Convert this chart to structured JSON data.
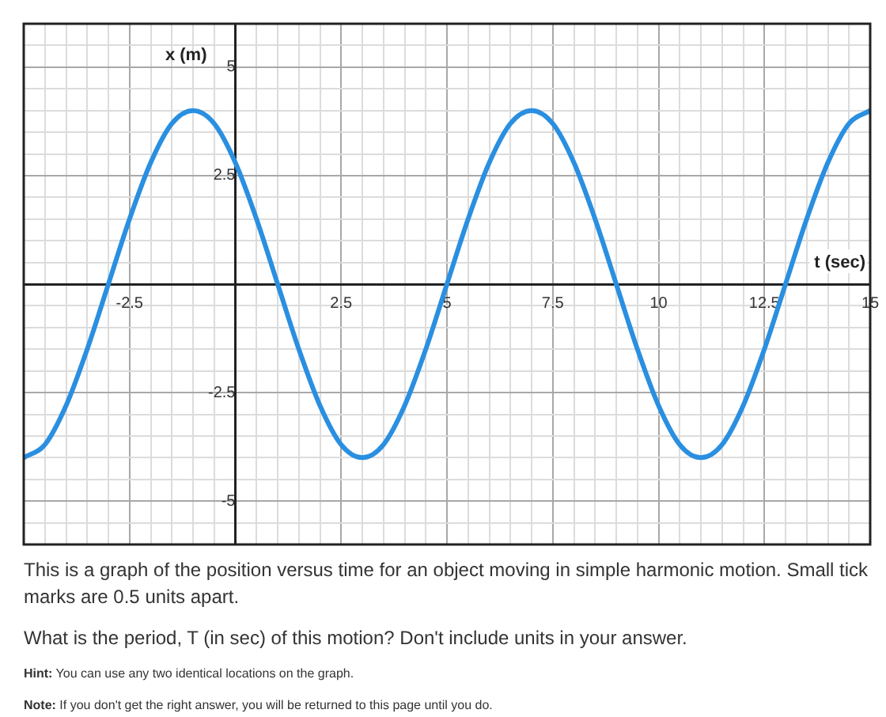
{
  "chart_data": {
    "type": "line",
    "xlabel": "t (sec)",
    "ylabel": "x (m)",
    "series": [
      {
        "color": "#2a8fe0",
        "x": [
          -5,
          -4.5,
          -4,
          -3.5,
          -3,
          -2.5,
          -2,
          -1.5,
          -1,
          -0.5,
          0,
          0.5,
          1,
          1.5,
          2,
          2.5,
          3,
          3.5,
          4,
          4.5,
          5,
          5.5,
          6,
          6.5,
          7,
          7.5,
          8,
          8.5,
          9,
          9.5,
          10,
          10.5,
          11,
          11.5,
          12,
          12.5,
          13,
          13.5,
          14,
          14.5,
          15
        ],
        "values": [
          -4,
          -3.7,
          -2.8,
          -1.5,
          0,
          1.5,
          2.8,
          3.7,
          4,
          3.7,
          2.8,
          1.5,
          0,
          -1.5,
          -2.8,
          -3.7,
          -4,
          -3.7,
          -2.8,
          -1.5,
          0,
          1.5,
          2.8,
          3.7,
          4,
          3.7,
          2.8,
          1.5,
          0,
          -1.5,
          -2.8,
          -3.7,
          -4,
          -3.7,
          -2.8,
          -1.5,
          0,
          1.5,
          2.8,
          3.7,
          4
        ]
      }
    ],
    "xlim": [
      -5,
      15
    ],
    "ylim": [
      -6,
      6
    ],
    "xticks": [
      {
        "value": -5,
        "label": null
      },
      {
        "value": -4.5,
        "label": null
      },
      {
        "value": -4,
        "label": null
      },
      {
        "value": -3.5,
        "label": null
      },
      {
        "value": -3,
        "label": null
      },
      -2.5,
      {
        "value": -2,
        "label": null
      },
      {
        "value": -1.5,
        "label": null
      },
      {
        "value": -1,
        "label": null
      },
      {
        "value": -0.5,
        "label": null
      },
      {
        "value": 0,
        "label": null
      },
      {
        "value": 0.5,
        "label": null
      },
      {
        "value": 1,
        "label": null
      },
      {
        "value": 1.5,
        "label": null
      },
      {
        "value": 2,
        "label": null
      },
      2.5,
      {
        "value": 3,
        "label": null
      },
      {
        "value": 3.5,
        "label": null
      },
      {
        "value": 4,
        "label": null
      },
      {
        "value": 4.5,
        "label": null
      },
      5,
      {
        "value": 5.5,
        "label": null
      },
      {
        "value": 6,
        "label": null
      },
      {
        "value": 6.5,
        "label": null
      },
      {
        "value": 7,
        "label": null
      },
      7.5,
      {
        "value": 8,
        "label": null
      },
      {
        "value": 8.5,
        "label": null
      },
      {
        "value": 9,
        "label": null
      },
      {
        "value": 9.5,
        "label": null
      },
      10,
      {
        "value": 10.5,
        "label": null
      },
      {
        "value": 11,
        "label": null
      },
      {
        "value": 11.5,
        "label": null
      },
      {
        "value": 12,
        "label": null
      },
      12.5,
      {
        "value": 13,
        "label": null
      },
      {
        "value": 13.5,
        "label": null
      },
      {
        "value": 14,
        "label": null
      },
      {
        "value": 14.5,
        "label": null
      },
      15
    ],
    "yticks": [
      {
        "value": -6,
        "label": null
      },
      {
        "value": -5.5,
        "label": null
      },
      -5,
      {
        "value": -4.5,
        "label": null
      },
      {
        "value": -4,
        "label": null
      },
      {
        "value": -3.5,
        "label": null
      },
      {
        "value": -3,
        "label": null
      },
      -2.5,
      {
        "value": -2,
        "label": null
      },
      {
        "value": -1.5,
        "label": null
      },
      {
        "value": -1,
        "label": null
      },
      {
        "value": -0.5,
        "label": null
      },
      {
        "value": 0,
        "label": null
      },
      {
        "value": 0.5,
        "label": null
      },
      {
        "value": 1,
        "label": null
      },
      {
        "value": 1.5,
        "label": null
      },
      {
        "value": 2,
        "label": null
      },
      2.5,
      {
        "value": 3,
        "label": null
      },
      {
        "value": 3.5,
        "label": null
      },
      {
        "value": 4,
        "label": null
      },
      {
        "value": 4.5,
        "label": null
      },
      5,
      {
        "value": 5.5,
        "label": null
      },
      {
        "value": 6,
        "label": null
      }
    ],
    "grid": true,
    "legend": false,
    "marker": "none",
    "line_style": "solid",
    "annotations": [
      "This is a graph of the position versus time for an object moving in simple harmonic motion. Small tick marks are 0.5 units apart.",
      "What is the period, T (in sec) of this motion? Don't include units in your answer.",
      "Hint: You can use any two identical locations on the graph.",
      "Note: If you don't get the right answer, you will be returned to this page until you do."
    ]
  }
}
